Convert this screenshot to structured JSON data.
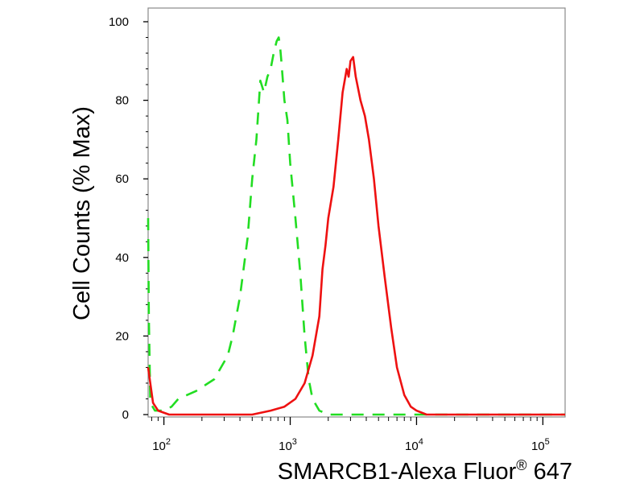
{
  "chart_data": {
    "type": "line",
    "title": "",
    "xlabel": "SMARCB1-Alexa Fluor",
    "xlabel_superscript": "®",
    "xlabel_suffix": " 647",
    "ylabel": "Cell Counts (% Max)",
    "x_scale": "log",
    "xlim": [
      75,
      150000
    ],
    "ylim": [
      0,
      100
    ],
    "grid": false,
    "legend": "none",
    "x_ticks": [
      {
        "base": "10",
        "exp": "2",
        "value": 100
      },
      {
        "base": "10",
        "exp": "3",
        "value": 1000
      },
      {
        "base": "10",
        "exp": "4",
        "value": 10000
      },
      {
        "base": "10",
        "exp": "5",
        "value": 100000
      }
    ],
    "y_ticks": [
      {
        "label": "0",
        "value": 0
      },
      {
        "label": "20",
        "value": 20
      },
      {
        "label": "40",
        "value": 40
      },
      {
        "label": "60",
        "value": 60
      },
      {
        "label": "80",
        "value": 80
      },
      {
        "label": "100",
        "value": 100
      }
    ],
    "series": [
      {
        "color": "#22dd22",
        "dash": "dashed",
        "points": [
          [
            75,
            50
          ],
          [
            76,
            25
          ],
          [
            78,
            3
          ],
          [
            85,
            1
          ],
          [
            100,
            1
          ],
          [
            115,
            2
          ],
          [
            130,
            4
          ],
          [
            180,
            6
          ],
          [
            250,
            9
          ],
          [
            320,
            15
          ],
          [
            350,
            20
          ],
          [
            400,
            30
          ],
          [
            460,
            45
          ],
          [
            500,
            60
          ],
          [
            540,
            70
          ],
          [
            580,
            85
          ],
          [
            620,
            82
          ],
          [
            660,
            86
          ],
          [
            700,
            88
          ],
          [
            740,
            92
          ],
          [
            780,
            95
          ],
          [
            810,
            96
          ],
          [
            830,
            94
          ],
          [
            850,
            90
          ],
          [
            900,
            80
          ],
          [
            950,
            75
          ],
          [
            1000,
            64
          ],
          [
            1100,
            50
          ],
          [
            1200,
            36
          ],
          [
            1300,
            20
          ],
          [
            1400,
            9
          ],
          [
            1500,
            4
          ],
          [
            1700,
            1
          ],
          [
            2000,
            0
          ],
          [
            5000,
            0
          ],
          [
            150000,
            0
          ]
        ]
      },
      {
        "color": "#ee1111",
        "dash": "solid",
        "points": [
          [
            75,
            12
          ],
          [
            78,
            8
          ],
          [
            82,
            3
          ],
          [
            90,
            1
          ],
          [
            110,
            0
          ],
          [
            200,
            0
          ],
          [
            500,
            0
          ],
          [
            700,
            1
          ],
          [
            900,
            2
          ],
          [
            1100,
            4
          ],
          [
            1300,
            8
          ],
          [
            1500,
            15
          ],
          [
            1700,
            25
          ],
          [
            1800,
            37
          ],
          [
            1900,
            43
          ],
          [
            2000,
            50
          ],
          [
            2200,
            58
          ],
          [
            2400,
            70
          ],
          [
            2600,
            82
          ],
          [
            2800,
            88
          ],
          [
            2900,
            86
          ],
          [
            3000,
            90
          ],
          [
            3150,
            91
          ],
          [
            3300,
            86
          ],
          [
            3600,
            80
          ],
          [
            3900,
            76
          ],
          [
            4200,
            70
          ],
          [
            4600,
            60
          ],
          [
            5000,
            48
          ],
          [
            5600,
            35
          ],
          [
            6300,
            22
          ],
          [
            7000,
            12
          ],
          [
            8000,
            5
          ],
          [
            9000,
            2
          ],
          [
            10000,
            1
          ],
          [
            12000,
            0
          ],
          [
            150000,
            0
          ]
        ]
      }
    ]
  }
}
